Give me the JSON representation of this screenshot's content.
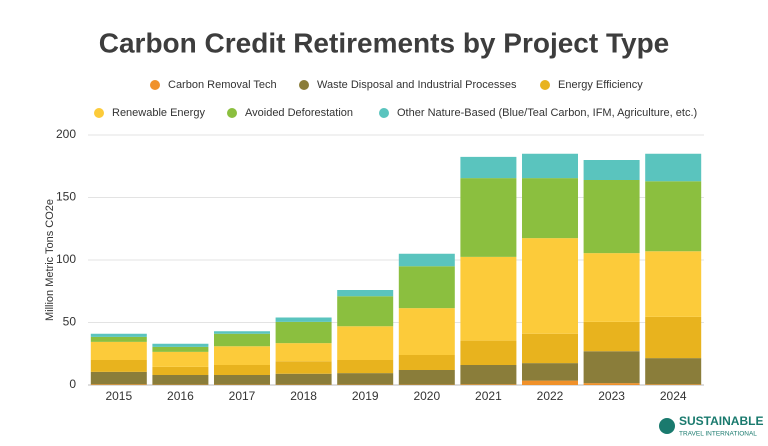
{
  "chart_data": {
    "type": "stacked_bar",
    "title": "Carbon Credit Retirements by Project Type",
    "y_label": "Million Metric Tons CO2e",
    "categories": [
      "2015",
      "2016",
      "2017",
      "2018",
      "2019",
      "2020",
      "2021",
      "2022",
      "2023",
      "2024"
    ],
    "series": [
      {
        "name": "Carbon Removal Tech",
        "color": "#f0912a",
        "values": [
          0.5,
          0.3,
          0.3,
          0.3,
          0.3,
          0.3,
          0.5,
          3.5,
          1.5,
          0.5
        ]
      },
      {
        "name": "Waste Disposal and Industrial Processes",
        "color": "#8a7d3a",
        "values": [
          10,
          7.7,
          7.7,
          8.7,
          9.2,
          11.7,
          15.5,
          14,
          25.5,
          21
        ]
      },
      {
        "name": "Energy Efficiency",
        "color": "#e8b31e",
        "values": [
          9.5,
          6.5,
          8,
          10,
          10.5,
          12,
          19.5,
          23.5,
          23.5,
          33
        ]
      },
      {
        "name": "Renewable Energy",
        "color": "#fccb3a",
        "values": [
          14.5,
          12,
          15,
          14.5,
          27,
          37.5,
          67,
          76.5,
          55,
          52.5
        ]
      },
      {
        "name": "Avoided Deforestation",
        "color": "#8bbf3f",
        "values": [
          4,
          4,
          10,
          17,
          24,
          33.5,
          63,
          48,
          58.5,
          56
        ]
      },
      {
        "name": "Other Nature-Based (Blue/Teal Carbon, IFM, Agriculture, etc.)",
        "color": "#5ac4be",
        "values": [
          2.5,
          2.5,
          2,
          3.5,
          5,
          10,
          17,
          19.5,
          16,
          22
        ]
      }
    ],
    "ylim": [
      0,
      200
    ],
    "yticks": [
      0,
      50,
      100,
      150,
      200
    ],
    "grid": true
  },
  "logo": {
    "line1": "SUSTAINABLE",
    "line2": "TRAVEL INTERNATIONAL"
  }
}
